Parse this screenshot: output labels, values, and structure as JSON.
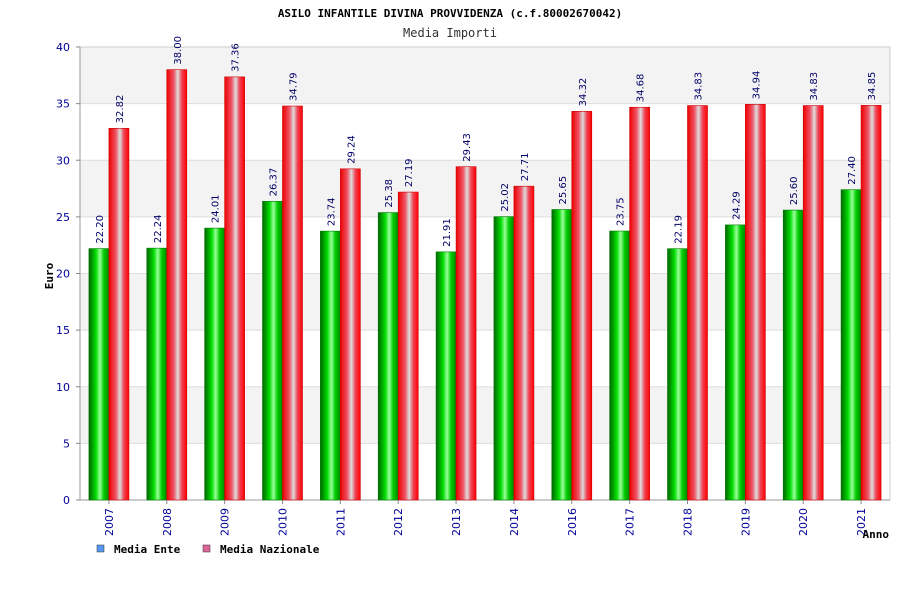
{
  "chart_data": {
    "type": "bar",
    "title": "ASILO INFANTILE DIVINA PROVVIDENZA (c.f.80002670042)",
    "subtitle": "Media Importi",
    "xlabel": "Anno",
    "ylabel": "Euro",
    "ylim": [
      0,
      40
    ],
    "yticks": [
      0,
      5,
      10,
      15,
      20,
      25,
      30,
      35,
      40
    ],
    "categories": [
      "2007",
      "2008",
      "2009",
      "2010",
      "2011",
      "2012",
      "2013",
      "2014",
      "2016",
      "2017",
      "2018",
      "2019",
      "2020",
      "2021"
    ],
    "series": [
      {
        "name": "Media Ente",
        "values": [
          22.2,
          22.24,
          24.01,
          26.37,
          23.74,
          25.38,
          21.91,
          25.02,
          25.65,
          23.75,
          22.19,
          24.29,
          25.6,
          27.4
        ],
        "labels": [
          "22.20",
          "22.24",
          "24.01",
          "26.37",
          "23.74",
          "25.38",
          "21.91",
          "25.02",
          "25.65",
          "23.75",
          "22.19",
          "24.29",
          "25.60",
          "27.40"
        ]
      },
      {
        "name": "Media Nazionale",
        "values": [
          32.82,
          38.0,
          37.36,
          34.79,
          29.24,
          27.19,
          29.43,
          27.71,
          34.32,
          34.68,
          34.83,
          34.94,
          34.83,
          34.85
        ],
        "labels": [
          "32.82",
          "38.00",
          "37.36",
          "34.79",
          "29.24",
          "27.19",
          "29.43",
          "27.71",
          "34.32",
          "34.68",
          "34.83",
          "34.94",
          "34.83",
          "34.85"
        ]
      }
    ],
    "grid": true,
    "legend_position": "bottom-left"
  },
  "colors": {
    "ente_bar": "#00cc00",
    "nazionale_bar": "#ee1111",
    "legend_ente": "#5599ee",
    "legend_nazionale": "#dd6699",
    "axis_text": "#000099",
    "label_text": "#000066"
  }
}
